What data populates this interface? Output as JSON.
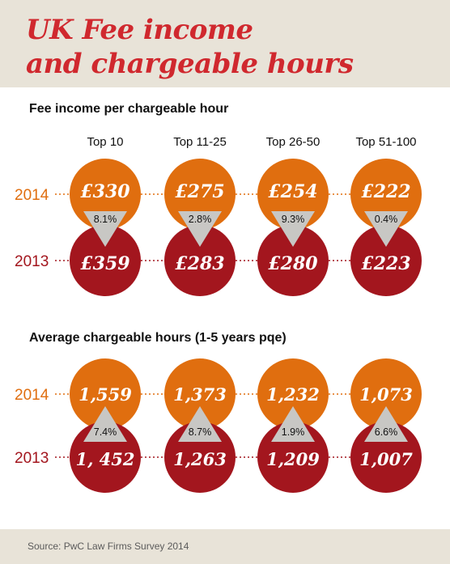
{
  "title_lines": [
    "UK Fee income",
    "and chargeable hours"
  ],
  "source": "Source: PwC Law Firms Survey 2014",
  "colors": {
    "y2014": "#e06e0f",
    "y2013": "#a3161e",
    "triangle": "#c8c7c4",
    "title": "#d0282e",
    "background_band": "#e8e3d8"
  },
  "chart_data": [
    {
      "type": "table",
      "title": "Fee income per chargeable hour",
      "categories": [
        "Top 10",
        "Top 11-25",
        "Top 26-50",
        "Top 51-100"
      ],
      "series": [
        {
          "name": "2014",
          "values": [
            330,
            275,
            254,
            222
          ],
          "labels": [
            "£330",
            "£275",
            "£254",
            "£222"
          ]
        },
        {
          "name": "2013",
          "values": [
            359,
            283,
            280,
            223
          ],
          "labels": [
            "£359",
            "£283",
            "£280",
            "£223"
          ]
        }
      ],
      "change_labels": [
        "8.1%",
        "2.8%",
        "9.3%",
        "0.4%"
      ],
      "change_direction": "down"
    },
    {
      "type": "table",
      "title": "Average chargeable hours (1-5 years pqe)",
      "categories": [
        "Top 10",
        "Top 11-25",
        "Top 26-50",
        "Top 51-100"
      ],
      "series": [
        {
          "name": "2014",
          "values": [
            1559,
            1373,
            1232,
            1073
          ],
          "labels": [
            "1,559",
            "1,373",
            "1,232",
            "1,073"
          ]
        },
        {
          "name": "2013",
          "values": [
            1452,
            1263,
            1209,
            1007
          ],
          "labels": [
            "1, 452",
            "1,263",
            "1,209",
            "1,007"
          ]
        }
      ],
      "change_labels": [
        "7.4%",
        "8.7%",
        "1.9%",
        "6.6%"
      ],
      "change_direction": "up"
    }
  ]
}
